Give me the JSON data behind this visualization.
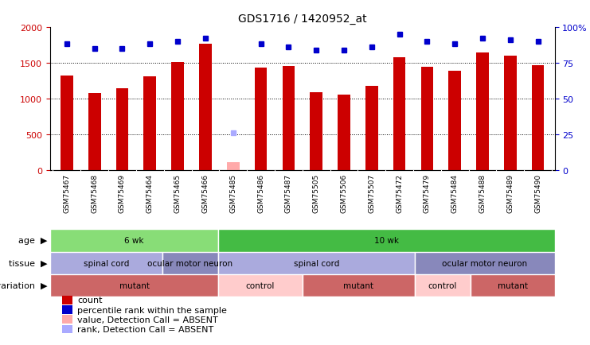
{
  "title": "GDS1716 / 1420952_at",
  "samples": [
    "GSM75467",
    "GSM75468",
    "GSM75469",
    "GSM75464",
    "GSM75465",
    "GSM75466",
    "GSM75485",
    "GSM75486",
    "GSM75487",
    "GSM75505",
    "GSM75506",
    "GSM75507",
    "GSM75472",
    "GSM75479",
    "GSM75484",
    "GSM75488",
    "GSM75489",
    "GSM75490"
  ],
  "counts": [
    1320,
    1080,
    1140,
    1310,
    1510,
    1760,
    110,
    1430,
    1460,
    1090,
    1060,
    1175,
    1575,
    1440,
    1390,
    1640,
    1600,
    1470
  ],
  "absent_count_idx": 6,
  "absent_count_val": 110,
  "percentile_ranks": [
    88,
    85,
    85,
    88,
    90,
    92,
    null,
    88,
    86,
    84,
    84,
    86,
    95,
    90,
    88,
    92,
    91,
    90
  ],
  "absent_rank_idx": 6,
  "absent_rank_val": 26,
  "ylim_left": [
    0,
    2000
  ],
  "ylim_right": [
    0,
    100
  ],
  "yticks_left": [
    0,
    500,
    1000,
    1500,
    2000
  ],
  "yticks_right": [
    0,
    25,
    50,
    75,
    100
  ],
  "bar_color": "#cc0000",
  "absent_bar_color": "#ffaaaa",
  "dot_color": "#0000cc",
  "absent_dot_color": "#aaaaff",
  "plot_bg_color": "#ffffff",
  "tick_area_bg": "#d8d8d8",
  "age_groups": [
    {
      "label": "6 wk",
      "start": 0,
      "end": 6,
      "color": "#88dd77"
    },
    {
      "label": "10 wk",
      "start": 6,
      "end": 18,
      "color": "#44bb44"
    }
  ],
  "tissue_groups": [
    {
      "label": "spinal cord",
      "start": 0,
      "end": 4,
      "color": "#aaaadd"
    },
    {
      "label": "ocular motor neuron",
      "start": 4,
      "end": 6,
      "color": "#8888bb"
    },
    {
      "label": "spinal cord",
      "start": 6,
      "end": 13,
      "color": "#aaaadd"
    },
    {
      "label": "ocular motor neuron",
      "start": 13,
      "end": 18,
      "color": "#8888bb"
    }
  ],
  "geno_groups": [
    {
      "label": "mutant",
      "start": 0,
      "end": 6,
      "color": "#cc6666"
    },
    {
      "label": "control",
      "start": 6,
      "end": 9,
      "color": "#ffcccc"
    },
    {
      "label": "mutant",
      "start": 9,
      "end": 13,
      "color": "#cc6666"
    },
    {
      "label": "control",
      "start": 13,
      "end": 15,
      "color": "#ffcccc"
    },
    {
      "label": "mutant",
      "start": 15,
      "end": 18,
      "color": "#cc6666"
    }
  ],
  "legend_items": [
    {
      "color": "#cc0000",
      "label": "count"
    },
    {
      "color": "#0000cc",
      "label": "percentile rank within the sample"
    },
    {
      "color": "#ffaaaa",
      "label": "value, Detection Call = ABSENT"
    },
    {
      "color": "#aaaaff",
      "label": "rank, Detection Call = ABSENT"
    }
  ]
}
